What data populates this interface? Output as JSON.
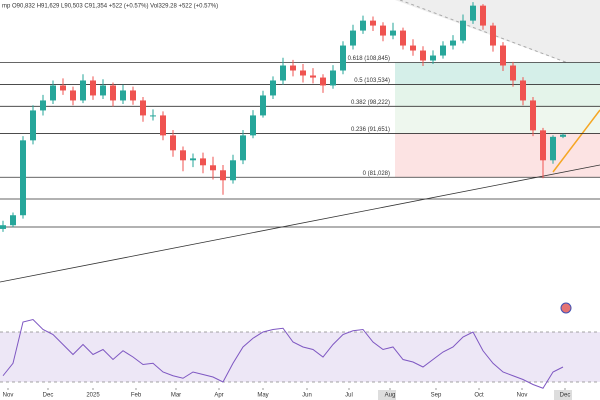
{
  "chart_data": [
    {
      "type": "candlestick",
      "title": "mp O90,832 H91,629 L90,503 C91,354 +522 (+0.57%) Vol329.28 +522 (+0.57%)",
      "ylim": [
        60000,
        124000
      ],
      "up_color": "#26a69a",
      "down_color": "#ef5350",
      "open": [
        68500,
        69400,
        71820,
        89980,
        97230,
        99650,
        103280,
        102070,
        99650,
        104490,
        100860,
        103280,
        99650,
        102070,
        99650,
        96020,
        96020,
        91180,
        87560,
        85140,
        85600,
        83930,
        82720,
        80300,
        85140,
        91180,
        96020,
        100860,
        104490,
        108120,
        106910,
        105700,
        105200,
        103280,
        106910,
        112960,
        116590,
        119000,
        117800,
        115380,
        116590,
        112960,
        111750,
        109330,
        110540,
        112960,
        114170,
        119000,
        122630,
        117800,
        112960,
        108120,
        104490,
        99650,
        92400,
        85140,
        90832
      ],
      "high": [
        70500,
        72500,
        91000,
        98500,
        101000,
        104500,
        105000,
        103000,
        106000,
        105500,
        104800,
        104000,
        103500,
        103000,
        100500,
        97500,
        97000,
        92500,
        88500,
        86800,
        87000,
        86000,
        84000,
        86500,
        92500,
        97300,
        102000,
        105500,
        110000,
        109500,
        108500,
        107500,
        106000,
        108200,
        114000,
        118000,
        120200,
        120000,
        118600,
        118500,
        117300,
        114500,
        112800,
        111800,
        114000,
        115500,
        120500,
        123500,
        123000,
        118500,
        113800,
        109000,
        105300,
        100500,
        93000,
        91200,
        91629
      ],
      "low": [
        67800,
        68900,
        71000,
        89000,
        96000,
        98800,
        101000,
        98500,
        99000,
        99800,
        100000,
        98200,
        98800,
        98600,
        94500,
        94800,
        90000,
        86000,
        82500,
        83500,
        82000,
        80500,
        76800,
        79500,
        84200,
        90500,
        95500,
        100000,
        103500,
        105500,
        104000,
        103800,
        101500,
        102500,
        106000,
        112000,
        115800,
        116500,
        114000,
        114500,
        112000,
        110500,
        108000,
        108500,
        109800,
        112000,
        113500,
        118200,
        116800,
        111500,
        106800,
        103000,
        98500,
        91000,
        80800,
        84300,
        90503
      ],
      "close": [
        69400,
        71820,
        89980,
        97230,
        99650,
        103280,
        102070,
        99650,
        104490,
        100860,
        103280,
        99650,
        102070,
        99650,
        96020,
        96020,
        91180,
        87560,
        85140,
        85600,
        83930,
        82720,
        80300,
        85140,
        91180,
        96020,
        100860,
        104490,
        108120,
        106910,
        105700,
        105200,
        103280,
        106910,
        112960,
        116590,
        119000,
        117800,
        115380,
        116590,
        112960,
        111750,
        109330,
        110540,
        112960,
        114170,
        119000,
        122630,
        117800,
        112960,
        108120,
        104490,
        99650,
        92400,
        85140,
        90832,
        91354
      ],
      "xticks": [
        {
          "value": 0.5,
          "label": "Nov"
        },
        {
          "value": 4.5,
          "label": "Dec"
        },
        {
          "value": 9,
          "label": "2025"
        },
        {
          "value": 13.3,
          "label": "Feb"
        },
        {
          "value": 17.3,
          "label": "Mar"
        },
        {
          "value": 21.6,
          "label": "Apr"
        },
        {
          "value": 26,
          "label": "May"
        },
        {
          "value": 30.4,
          "label": "Jun"
        },
        {
          "value": 34.6,
          "label": "Jul"
        },
        {
          "value": 38.7,
          "label": "Aug"
        },
        {
          "value": 43.3,
          "label": "Sep"
        },
        {
          "value": 47.6,
          "label": "Oct"
        },
        {
          "value": 51.9,
          "label": "Nov"
        },
        {
          "value": 56.2,
          "label": "Dec"
        }
      ],
      "fib_levels": [
        {
          "value": 108845,
          "label": "0.618 (108,845)"
        },
        {
          "value": 103534,
          "label": "0.5 (103,534)"
        },
        {
          "value": 98222,
          "label": "0.382 (98,222)"
        },
        {
          "value": 91651,
          "label": "0.236 (91,651)"
        },
        {
          "value": 81028,
          "label": "0 (81,028)"
        }
      ],
      "fib_label_colors": [
        "#089981",
        "#089981",
        "#4caf50",
        "#f23645",
        "#555555"
      ],
      "fib_zone_colors": [
        "#d5efe9",
        "#e4f4ea",
        "#eef7ee",
        "#fce3e3"
      ]
    },
    {
      "type": "line",
      "color": "#7e57c2",
      "ylim": [
        0,
        100
      ],
      "yticks": [
        30,
        70
      ],
      "band_color": "#ede7f6",
      "values": [
        35,
        45,
        78,
        80,
        72,
        68,
        60,
        52,
        60,
        52,
        56,
        48,
        55,
        50,
        44,
        45,
        38,
        35,
        33,
        38,
        36,
        34,
        30,
        45,
        58,
        65,
        70,
        72,
        73,
        62,
        58,
        56,
        50,
        60,
        68,
        71,
        72,
        62,
        56,
        58,
        48,
        46,
        42,
        48,
        54,
        58,
        66,
        70,
        55,
        45,
        38,
        35,
        32,
        28,
        25,
        38,
        42
      ]
    }
  ]
}
